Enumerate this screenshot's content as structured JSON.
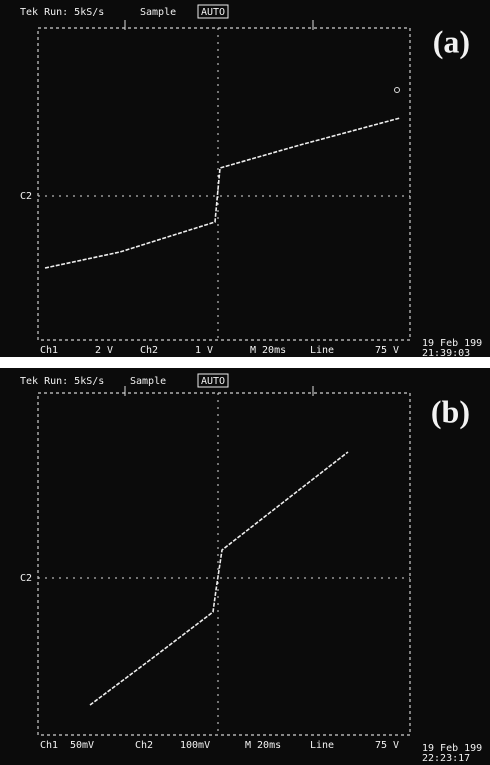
{
  "panels": [
    {
      "status": "Tek Run: 5kS/s",
      "mode": "Sample",
      "trigger": "AUTO",
      "label": "(a)",
      "marker": "C2",
      "ch1": "Ch1",
      "ch1_scale": "2 V",
      "ch2": "Ch2",
      "ch2_scale": "1 V",
      "timebase": "M 20ms",
      "source": "Line",
      "level": "75 V",
      "date": "19 Feb 199",
      "time": "21:39:03"
    },
    {
      "status": "Tek Run: 5kS/s",
      "mode": "Sample",
      "trigger": "AUTO",
      "label": "(b)",
      "marker": "C2",
      "ch1": "Ch1",
      "ch1_scale": "50mV",
      "ch2": "Ch2",
      "ch2_scale": "100mV",
      "timebase": "M 20ms",
      "source": "Line",
      "level": "75 V",
      "date": "19 Feb 199",
      "time": "22:23:17"
    }
  ]
}
